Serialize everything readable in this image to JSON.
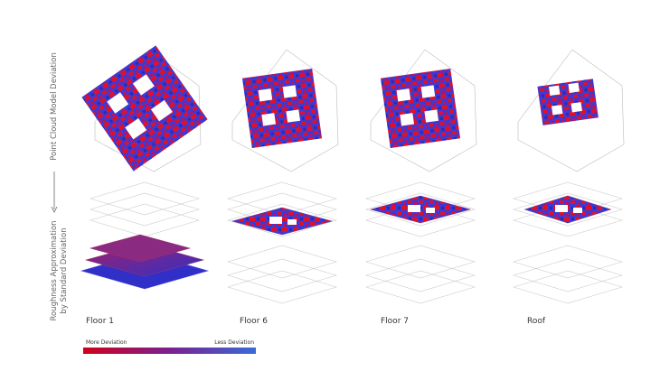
{
  "row_labels": [
    {
      "lines": [
        "Point Cloud Model Deviation"
      ]
    },
    {
      "lines": [
        "Roughness Approximation",
        "by Standard Deviation"
      ]
    }
  ],
  "panels": [
    {
      "label": "Floor 1"
    },
    {
      "label": "Floor 6"
    },
    {
      "label": "Floor 7"
    },
    {
      "label": "Roof"
    }
  ],
  "legend": {
    "low": "More Deviation",
    "high": "Less Deviation"
  }
}
